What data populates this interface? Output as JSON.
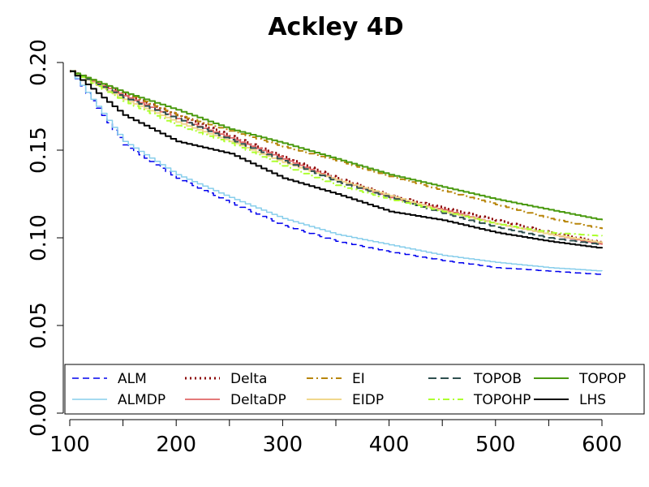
{
  "chart_data": {
    "type": "line",
    "title": "Ackley 4D",
    "xlabel": "",
    "ylabel": "",
    "xlim": [
      100,
      600
    ],
    "ylim": [
      0,
      0.2
    ],
    "xticks": [
      100,
      200,
      300,
      400,
      500,
      600
    ],
    "yticks": [
      "0.00",
      "0.05",
      "0.10",
      "0.15",
      "0.20"
    ],
    "grid": false,
    "legend_position": "bottom",
    "x": [
      100,
      150,
      200,
      250,
      300,
      350,
      400,
      450,
      500,
      550,
      600
    ],
    "series": [
      {
        "name": "ALM",
        "color": "#0000ee",
        "dash": "8,5",
        "width": 1.5,
        "values": [
          0.195,
          0.153,
          0.134,
          0.12,
          0.107,
          0.098,
          0.092,
          0.087,
          0.083,
          0.081,
          0.079
        ]
      },
      {
        "name": "ALMDP",
        "color": "#87ceeb",
        "dash": "",
        "width": 1.5,
        "values": [
          0.195,
          0.155,
          0.136,
          0.123,
          0.111,
          0.102,
          0.096,
          0.09,
          0.086,
          0.083,
          0.081
        ]
      },
      {
        "name": "Delta",
        "color": "#8b0000",
        "dash": "2,4",
        "width": 3,
        "values": [
          0.195,
          0.182,
          0.17,
          0.158,
          0.146,
          0.134,
          0.124,
          0.117,
          0.11,
          0.103,
          0.097
        ]
      },
      {
        "name": "DeltaDP",
        "color": "#e06666",
        "dash": "",
        "width": 1.8,
        "values": [
          0.195,
          0.181,
          0.168,
          0.157,
          0.145,
          0.133,
          0.123,
          0.116,
          0.108,
          0.102,
          0.096
        ]
      },
      {
        "name": "EI",
        "color": "#b8860b",
        "dash": "8,4,2,4",
        "width": 2,
        "values": [
          0.195,
          0.183,
          0.17,
          0.161,
          0.152,
          0.144,
          0.135,
          0.127,
          0.119,
          0.111,
          0.105
        ]
      },
      {
        "name": "EIDP",
        "color": "#f0d78c",
        "dash": "",
        "width": 2,
        "values": [
          0.195,
          0.179,
          0.166,
          0.155,
          0.143,
          0.133,
          0.124,
          0.115,
          0.108,
          0.102,
          0.097
        ]
      },
      {
        "name": "TOPOB",
        "color": "#2f4f4f",
        "dash": "10,5",
        "width": 2,
        "values": [
          0.195,
          0.18,
          0.168,
          0.156,
          0.144,
          0.132,
          0.123,
          0.114,
          0.106,
          0.1,
          0.096
        ]
      },
      {
        "name": "TOPOHP",
        "color": "#adff2f",
        "dash": "8,4,2,4",
        "width": 2,
        "values": [
          0.195,
          0.178,
          0.164,
          0.154,
          0.141,
          0.13,
          0.122,
          0.115,
          0.108,
          0.103,
          0.101
        ]
      },
      {
        "name": "TOPOP",
        "color": "#4a9a10",
        "dash": "",
        "width": 2,
        "values": [
          0.195,
          0.183,
          0.173,
          0.162,
          0.154,
          0.145,
          0.136,
          0.129,
          0.122,
          0.116,
          0.11
        ]
      },
      {
        "name": "LHS",
        "color": "#000000",
        "dash": "",
        "width": 2,
        "values": [
          0.195,
          0.17,
          0.155,
          0.148,
          0.134,
          0.125,
          0.115,
          0.11,
          0.103,
          0.098,
          0.094
        ]
      }
    ],
    "legend_layout": [
      [
        "ALM",
        "Delta",
        "EI",
        "TOPOB",
        "TOPOP"
      ],
      [
        "ALMDP",
        "DeltaDP",
        "EIDP",
        "TOPOHP",
        "LHS"
      ]
    ]
  }
}
